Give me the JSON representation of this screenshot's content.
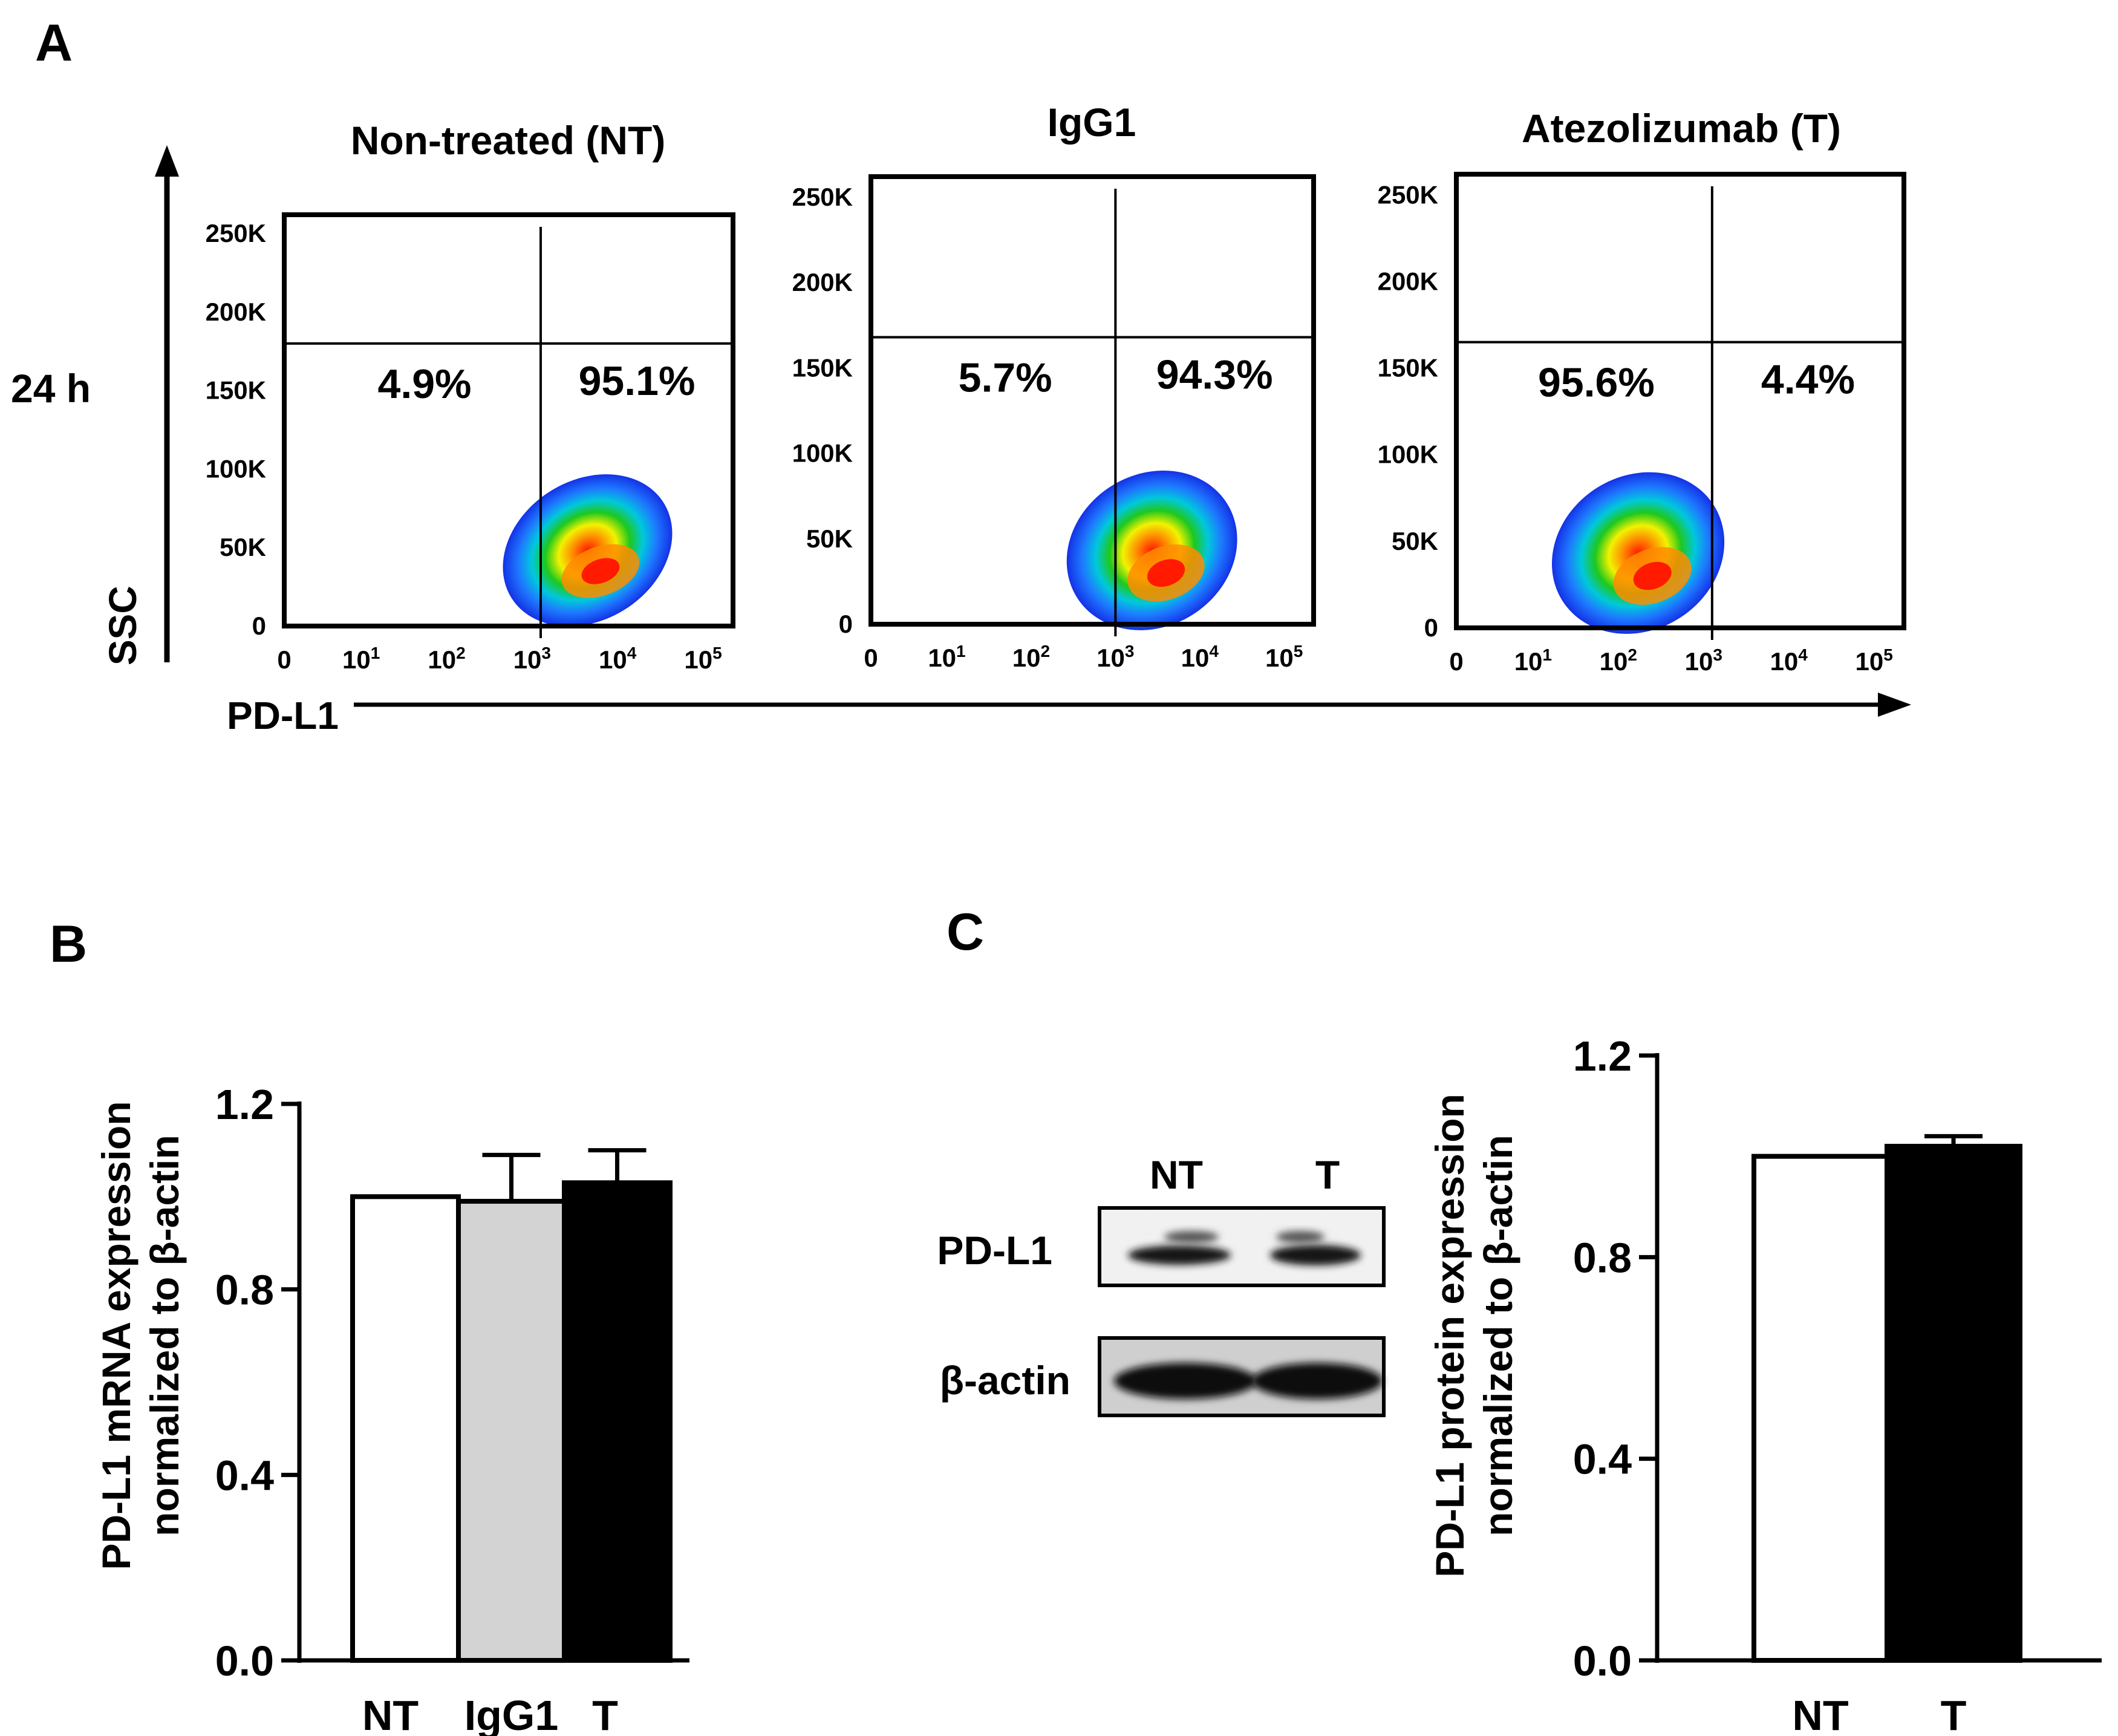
{
  "panel_labels": {
    "a": "A",
    "b": "B",
    "c": "C"
  },
  "panel_a": {
    "row_label": "24 h",
    "y_axis_label": "SSC",
    "x_axis_label": "PD-L1",
    "y_ticks": [
      "250K",
      "200K",
      "150K",
      "100K",
      "50K",
      "0"
    ],
    "x_ticks": [
      {
        "base": "0",
        "exp": ""
      },
      {
        "base": "10",
        "exp": "1"
      },
      {
        "base": "10",
        "exp": "2"
      },
      {
        "base": "10",
        "exp": "3"
      },
      {
        "base": "10",
        "exp": "4"
      },
      {
        "base": "10",
        "exp": "5"
      }
    ],
    "plots": [
      {
        "title": "Non-treated (NT)",
        "left_pct": "4.9%",
        "right_pct": "95.1%",
        "gate_x_decades": 3.0,
        "gate_y_K": 180,
        "peak_x_decades": 3.7,
        "peak_y_K": 35
      },
      {
        "title": "IgG1",
        "left_pct": "5.7%",
        "right_pct": "94.3%",
        "gate_x_decades": 2.9,
        "gate_y_K": 168,
        "peak_x_decades": 3.5,
        "peak_y_K": 30
      },
      {
        "title": "Atezolizumab (T)",
        "left_pct": "95.6%",
        "right_pct": "4.4%",
        "gate_x_decades": 3.0,
        "gate_y_K": 165,
        "peak_x_decades": 2.3,
        "peak_y_K": 30
      }
    ]
  },
  "chart_data": [
    {
      "type": "bar",
      "panel": "B",
      "title": "",
      "categories": [
        "NT",
        "IgG1",
        "T"
      ],
      "values": [
        1.0,
        0.99,
        1.03
      ],
      "errors": [
        0.0,
        0.1,
        0.07
      ],
      "colors": [
        "#ffffff",
        "#d3d3d3",
        "#000000"
      ],
      "ylabel_line1": "PD-L1 mRNA expression",
      "ylabel_line2": "normalized to β-actin",
      "xlabel": "",
      "ylim": [
        0,
        1.2
      ],
      "yticks": [
        "0.0",
        "0.4",
        "0.8",
        "1.2"
      ]
    },
    {
      "type": "bar",
      "panel": "C",
      "title": "",
      "categories": [
        "NT",
        "T"
      ],
      "values": [
        1.0,
        1.02
      ],
      "errors": [
        0.0,
        0.02
      ],
      "colors": [
        "#ffffff",
        "#000000"
      ],
      "ylabel_line1": "PD-L1 protein expression",
      "ylabel_line2": "normalized to β-actin",
      "xlabel": "",
      "ylim": [
        0,
        1.2
      ],
      "yticks": [
        "0.0",
        "0.4",
        "0.8",
        "1.2"
      ]
    }
  ],
  "western_blot": {
    "lanes": [
      "NT",
      "T"
    ],
    "rows": [
      "PD-L1",
      "β-actin"
    ]
  }
}
